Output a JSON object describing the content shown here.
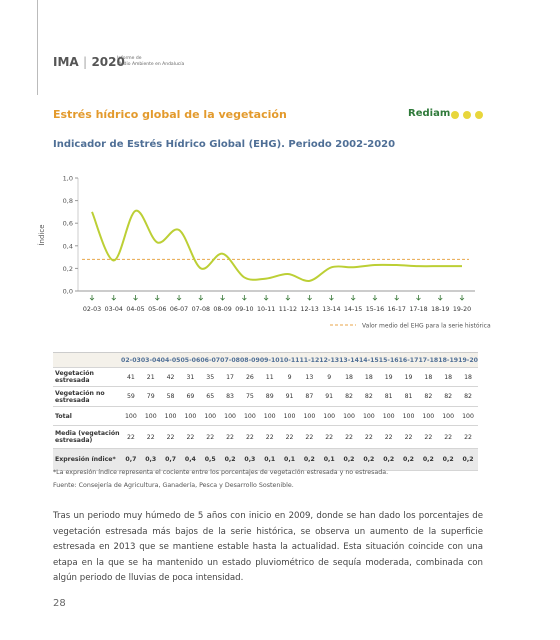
{
  "header": {
    "logo": "IMA",
    "logo_year": "2020",
    "subtitle_line1": "Informe de",
    "subtitle_line2": "Medio Ambiente en Andalucía"
  },
  "section_title": "Estrés hídrico global de la vegetación",
  "brand": "Rediam",
  "chart_data": {
    "type": "line",
    "title": "Indicador de Estrés Hídrico Global (EHG). Periodo 2002-2020",
    "y_label": "Índice",
    "categories": [
      "02-03",
      "03-04",
      "04-05",
      "05-06",
      "06-07",
      "07-08",
      "08-09",
      "09-10",
      "10-11",
      "11-12",
      "12-13",
      "13-14",
      "14-15",
      "15-16",
      "16-17",
      "17-18",
      "18-19",
      "19-20"
    ],
    "series": [
      {
        "name": "EHG",
        "color": "#bccf35",
        "values": [
          0.7,
          0.27,
          0.71,
          0.43,
          0.54,
          0.2,
          0.33,
          0.12,
          0.11,
          0.15,
          0.09,
          0.21,
          0.21,
          0.23,
          0.23,
          0.22,
          0.22,
          0.22
        ]
      }
    ],
    "reference": {
      "value": 0.28,
      "label": "Valor medio del EHG para la serie histórica",
      "color": "#e8a64a"
    },
    "ylim": [
      0,
      1
    ],
    "yticks": [
      {
        "value": 0,
        "label": "0,0"
      },
      {
        "value": 0.2,
        "label": "0,2"
      },
      {
        "value": 0.4,
        "label": "0,4"
      },
      {
        "value": 0.6,
        "label": "0,6"
      },
      {
        "value": 0.8,
        "label": "0,8"
      },
      {
        "value": 1,
        "label": "1,0"
      }
    ]
  },
  "table": {
    "rows": [
      {
        "label": "Vegetación estresada",
        "values": [
          41,
          21,
          42,
          31,
          35,
          17,
          26,
          11,
          9,
          13,
          9,
          18,
          18,
          19,
          19,
          18,
          18,
          18
        ]
      },
      {
        "label": "Vegetación no estresada",
        "values": [
          59,
          79,
          58,
          69,
          65,
          83,
          75,
          89,
          91,
          87,
          91,
          82,
          82,
          81,
          81,
          82,
          82,
          82
        ]
      },
      {
        "label": "Total",
        "values": [
          100,
          100,
          100,
          100,
          100,
          100,
          100,
          100,
          100,
          100,
          100,
          100,
          100,
          100,
          100,
          100,
          100,
          100
        ]
      },
      {
        "label": "Media (vegetación estresada)",
        "values": [
          22,
          22,
          22,
          22,
          22,
          22,
          22,
          22,
          22,
          22,
          22,
          22,
          22,
          22,
          22,
          22,
          22,
          22
        ]
      },
      {
        "label": "Expresión índice*",
        "values": [
          "0,7",
          "0,3",
          "0,7",
          "0,4",
          "0,5",
          "0,2",
          "0,3",
          "0,1",
          "0,1",
          "0,2",
          "0,1",
          "0,2",
          "0,2",
          "0,2",
          "0,2",
          "0,2",
          "0,2",
          "0,2"
        ]
      }
    ]
  },
  "footnotes": [
    "*La expresión índice representa el cociente entre los porcentajes de vegetación estresada y no estresada.",
    "Fuente: Consejería de Agricultura, Ganadería, Pesca y Desarrollo Sostenible."
  ],
  "body": "Tras un periodo muy húmedo de 5 años con inicio en 2009, donde se han dado los porcentajes de vegetación estresada más bajos de la serie histórica, se observa un aumento de la superficie estresada en 2013 que se mantiene estable hasta la actualidad. Esta situación coincide con una etapa en la que se ha mantenido un estado pluviométrico de sequía moderada, combinada con algún periodo de lluvias de poca intensidad.",
  "page_number": "28"
}
